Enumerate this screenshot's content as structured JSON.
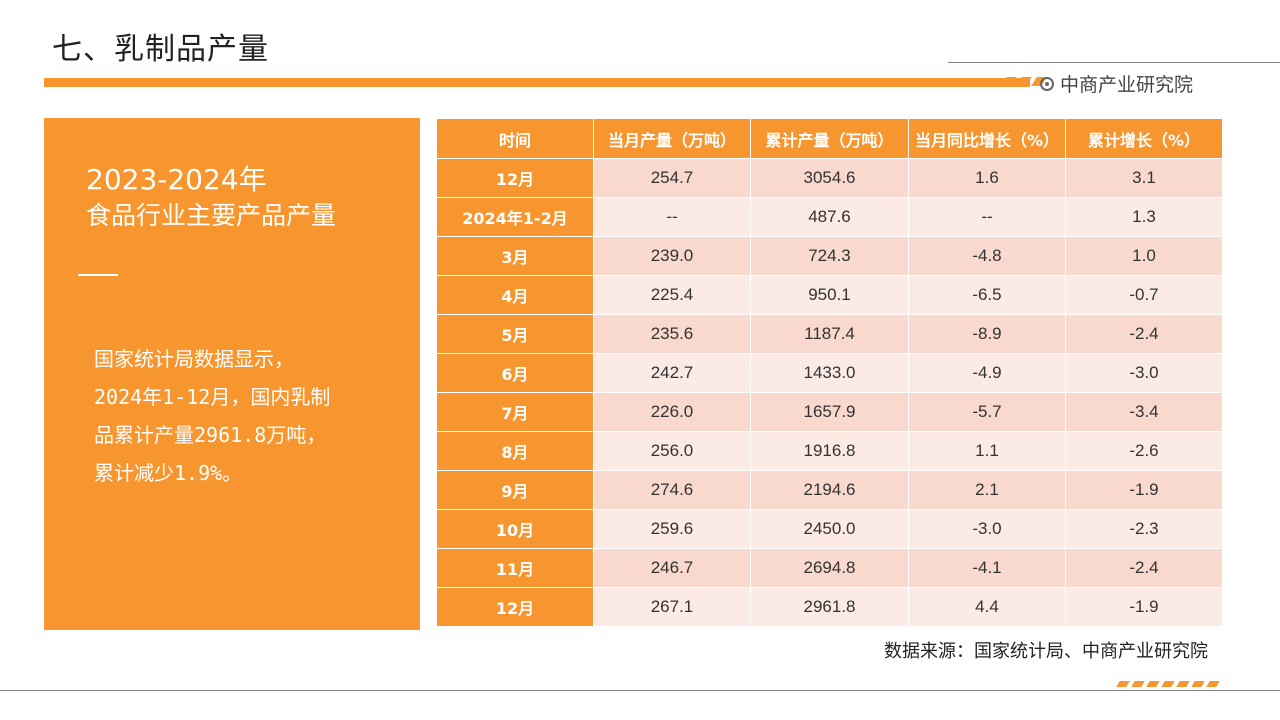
{
  "title": "七、乳制品产量",
  "brand": "中商产业研究院",
  "panel": {
    "year": "2023-2024年",
    "heading": "食品行业主要产品产量",
    "body_lines": [
      "国家统计局数据显示，",
      "2024年1-12月，国内乳制",
      "品累计产量2961.8万吨，",
      "累计减少1.9%。"
    ]
  },
  "table": {
    "headers": [
      "时间",
      "当月产量（万吨）",
      "累计产量（万吨）",
      "当月同比增长（%）",
      "累计增长（%）"
    ],
    "rows": [
      [
        "12月",
        "254.7",
        "3054.6",
        "1.6",
        "3.1"
      ],
      [
        "2024年1-2月",
        "--",
        "487.6",
        "--",
        "1.3"
      ],
      [
        "3月",
        "239.0",
        "724.3",
        "-4.8",
        "1.0"
      ],
      [
        "4月",
        "225.4",
        "950.1",
        "-6.5",
        "-0.7"
      ],
      [
        "5月",
        "235.6",
        "1187.4",
        "-8.9",
        "-2.4"
      ],
      [
        "6月",
        "242.7",
        "1433.0",
        "-4.9",
        "-3.0"
      ],
      [
        "7月",
        "226.0",
        "1657.9",
        "-5.7",
        "-3.4"
      ],
      [
        "8月",
        "256.0",
        "1916.8",
        "1.1",
        "-2.6"
      ],
      [
        "9月",
        "274.6",
        "2194.6",
        "2.1",
        "-1.9"
      ],
      [
        "10月",
        "259.6",
        "2450.0",
        "-3.0",
        "-2.3"
      ],
      [
        "11月",
        "246.7",
        "2694.8",
        "-4.1",
        "-2.4"
      ],
      [
        "12月",
        "267.1",
        "2961.8",
        "4.4",
        "-1.9"
      ]
    ]
  },
  "source": "数据来源：国家统计局、中商产业研究院",
  "colors": {
    "accent": "#f7962e",
    "row_dark": "#f9d9cd",
    "row_light": "#fcebe5"
  }
}
